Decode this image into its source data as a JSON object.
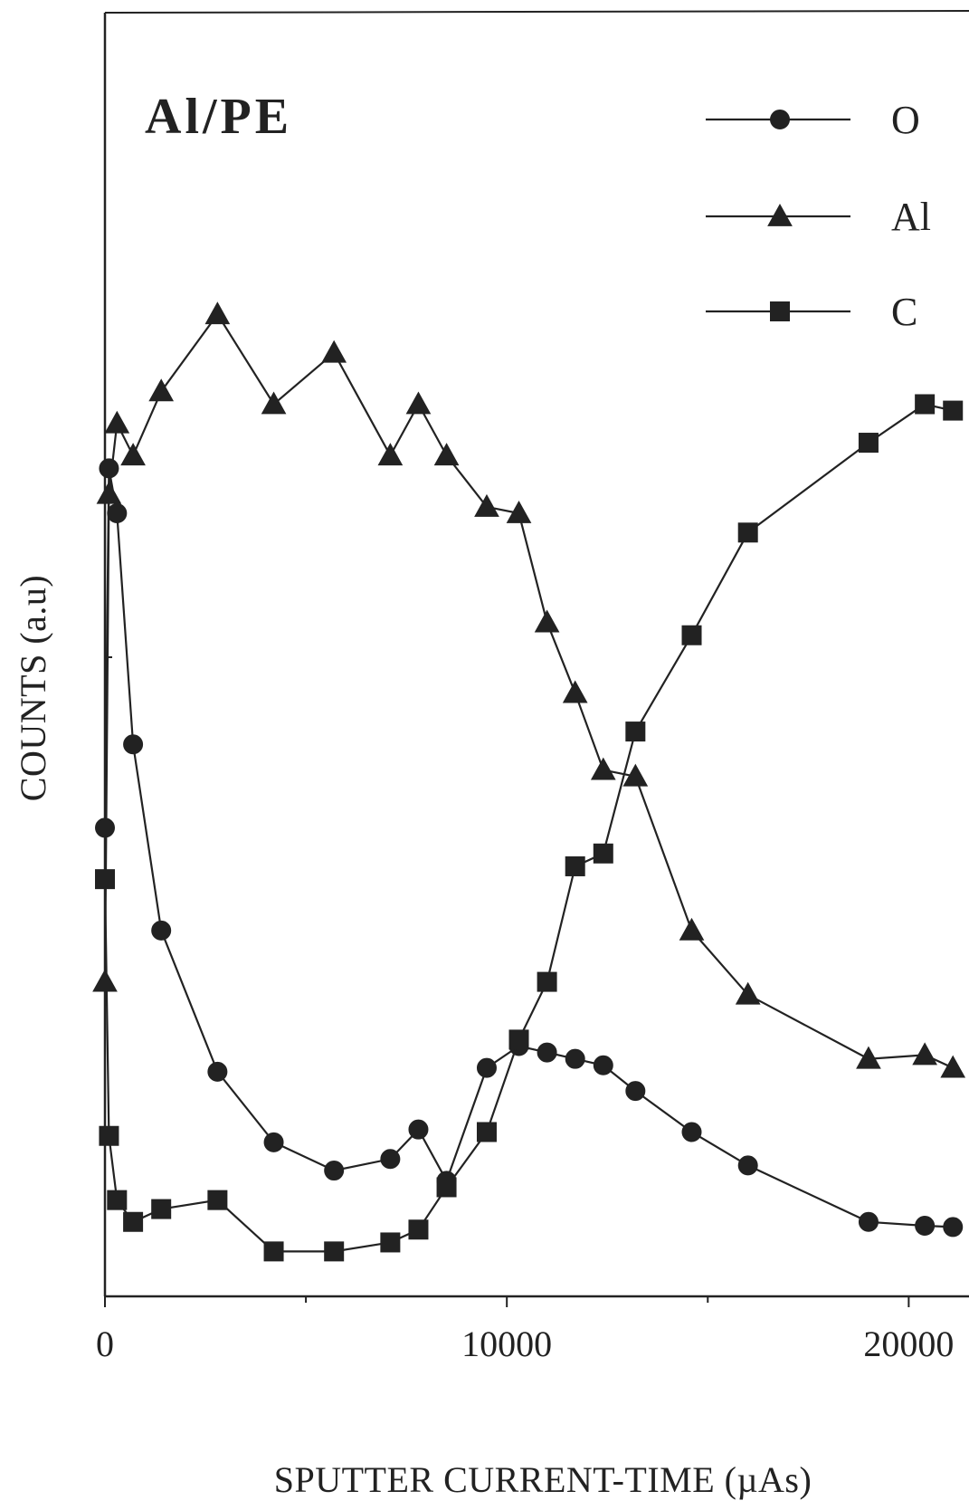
{
  "chart_data": {
    "type": "line",
    "title": "Al/PE",
    "xlabel": "SPUTTER CURRENT-TIME (µAs)",
    "ylabel": "COUNTS (a.u)",
    "xlim": [
      0,
      21500
    ],
    "ylim": [
      0,
      100
    ],
    "x_ticks": [
      0,
      10000,
      20000
    ],
    "x_tick_labels": [
      "0",
      "10000",
      "20000"
    ],
    "legend_position": "top-right",
    "grid": false,
    "series": [
      {
        "name": "O",
        "marker": "circle",
        "x": [
          0,
          100,
          300,
          700,
          1400,
          2800,
          4200,
          5700,
          7100,
          7800,
          8500,
          9500,
          10300,
          11000,
          11700,
          12400,
          13200,
          14600,
          16000,
          19000,
          20400,
          21100
        ],
        "y": [
          36.5,
          64.5,
          61,
          43,
          28.5,
          17.5,
          12,
          9.8,
          10.7,
          13,
          9,
          17.8,
          19.5,
          19,
          18.5,
          18,
          16,
          12.8,
          10.2,
          5.8,
          5.5,
          5.4
        ]
      },
      {
        "name": "Al",
        "marker": "triangle",
        "x": [
          0,
          100,
          300,
          700,
          1400,
          2800,
          4200,
          5700,
          7100,
          7800,
          8500,
          9500,
          10300,
          11000,
          11700,
          12400,
          13200,
          14600,
          16000,
          19000,
          20400,
          21100
        ],
        "y": [
          24.5,
          62.5,
          68,
          65.5,
          70.5,
          76.5,
          69.5,
          73.5,
          65.5,
          69.5,
          65.5,
          61.5,
          61,
          52.5,
          47,
          41,
          40.5,
          28.5,
          23.5,
          18.5,
          18.8,
          17.8
        ]
      },
      {
        "name": "C",
        "marker": "square",
        "x": [
          0,
          100,
          300,
          700,
          1400,
          2800,
          4200,
          5700,
          7100,
          7800,
          8500,
          9500,
          10300,
          11000,
          11700,
          12400,
          13200,
          14600,
          16000,
          19000,
          20400,
          21100
        ],
        "y": [
          32.5,
          12.5,
          7.5,
          5.8,
          6.8,
          7.5,
          3.5,
          3.5,
          4.2,
          5.2,
          8.5,
          12.8,
          20,
          24.5,
          33.5,
          34.5,
          44,
          51.5,
          59.5,
          66.5,
          69.5,
          69
        ]
      }
    ]
  }
}
